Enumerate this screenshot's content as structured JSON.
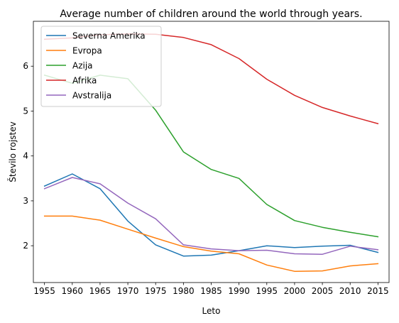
{
  "chart_data": {
    "type": "line",
    "title": "Average number of children around the world through years.",
    "xlabel": "Leto",
    "ylabel": "Število rojstev",
    "x": [
      1955,
      1960,
      1965,
      1970,
      1975,
      1980,
      1985,
      1990,
      1995,
      2000,
      2005,
      2010,
      2015
    ],
    "xlim": [
      1953,
      2017
    ],
    "ylim": [
      1.18,
      7.0
    ],
    "yticks": [
      2,
      3,
      4,
      5,
      6
    ],
    "grid": false,
    "legend_position": "top-left",
    "series": [
      {
        "name": "Severna Amerika",
        "color": "#1f77b4",
        "values": [
          3.33,
          3.6,
          3.27,
          2.55,
          2.02,
          1.77,
          1.79,
          1.89,
          2.0,
          1.96,
          1.99,
          2.01,
          1.85
        ]
      },
      {
        "name": "Evropa",
        "color": "#ff7f0e",
        "values": [
          2.66,
          2.66,
          2.57,
          2.37,
          2.17,
          1.98,
          1.88,
          1.82,
          1.57,
          1.43,
          1.44,
          1.55,
          1.6
        ]
      },
      {
        "name": "Azija",
        "color": "#2ca02c",
        "values": [
          5.8,
          5.62,
          5.8,
          5.72,
          5.02,
          4.09,
          3.7,
          3.5,
          2.92,
          2.56,
          2.41,
          2.3,
          2.2
        ]
      },
      {
        "name": "Afrika",
        "color": "#d62728",
        "values": [
          6.6,
          6.63,
          6.7,
          6.72,
          6.71,
          6.64,
          6.48,
          6.17,
          5.71,
          5.35,
          5.08,
          4.89,
          4.72
        ]
      },
      {
        "name": "Avstralija",
        "color": "#9467bd",
        "values": [
          3.27,
          3.52,
          3.38,
          2.95,
          2.6,
          2.02,
          1.93,
          1.89,
          1.9,
          1.82,
          1.81,
          1.99,
          1.91
        ]
      }
    ]
  }
}
